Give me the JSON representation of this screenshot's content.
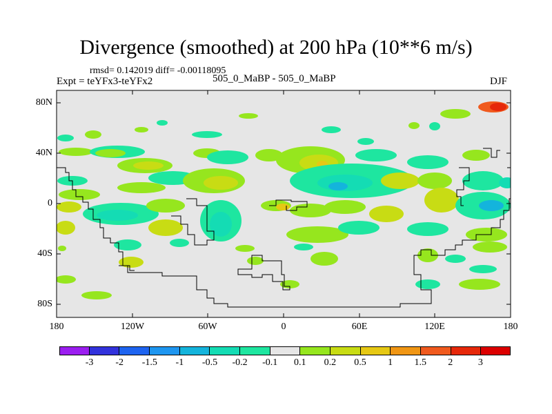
{
  "figure": {
    "title": "Divergence (smoothed) at 200 hPa (10**6 m/s)",
    "stats": "rmsd= 0.142019 diff= -0.00118095",
    "experiment": "Expt = teYFx3-teYFx2",
    "comparison": "505_0_MaBP - 505_0_MaBP",
    "season": "DJF"
  },
  "axes": {
    "y_ticks": [
      "80N",
      "40N",
      "0",
      "40S",
      "80S"
    ],
    "x_ticks": [
      "180",
      "120W",
      "60W",
      "0",
      "60E",
      "120E",
      "180"
    ]
  },
  "colorbar": {
    "labels": [
      "-3",
      "-2",
      "-1.5",
      "-1",
      "-0.5",
      "-0.2",
      "-0.1",
      "0.1",
      "0.2",
      "0.5",
      "1",
      "1.5",
      "2",
      "3"
    ],
    "colors": [
      "#9b1ef0",
      "#3232dc",
      "#1e64f0",
      "#1e96f0",
      "#14b4dc",
      "#14dcb4",
      "#1ee6a0",
      "#e6e6e6",
      "#96e61e",
      "#c8dc14",
      "#e6c814",
      "#f09614",
      "#f05a1e",
      "#e6280a",
      "#dc0000"
    ]
  },
  "map_colors": {
    "background": "#e6e6e6",
    "coastline": "#000000"
  }
}
